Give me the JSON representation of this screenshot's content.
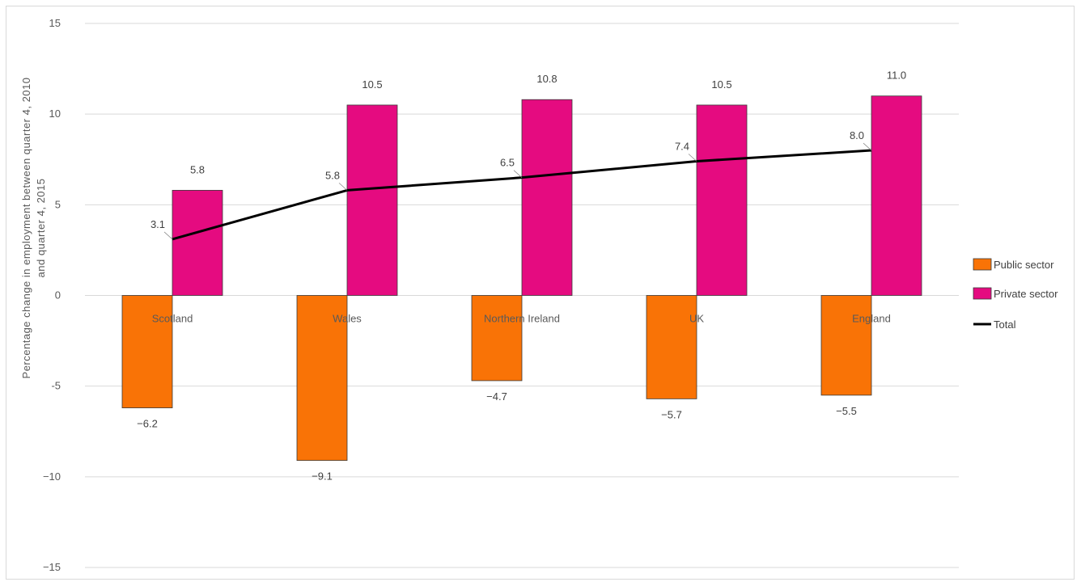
{
  "chart_data": {
    "type": "bar",
    "categories": [
      "Scotland",
      "Wales",
      "Northern Ireland",
      "UK",
      "England"
    ],
    "series": [
      {
        "name": "Public sector",
        "kind": "bar",
        "color": "#f97306",
        "values": [
          -6.2,
          -9.1,
          -4.7,
          -5.7,
          -5.5
        ]
      },
      {
        "name": "Private sector",
        "kind": "bar",
        "color": "#e50b80",
        "values": [
          5.8,
          10.5,
          10.8,
          10.5,
          11.0
        ]
      },
      {
        "name": "Total",
        "kind": "line",
        "color": "#000000",
        "values": [
          3.1,
          5.8,
          6.5,
          7.4,
          8.0
        ]
      }
    ],
    "value_labels": {
      "Public sector": [
        "−6.2",
        "−9.1",
        "−4.7",
        "−5.7",
        "−5.5"
      ],
      "Private sector": [
        "5.8",
        "10.5",
        "10.8",
        "10.5",
        "11.0"
      ],
      "Total": [
        "3.1",
        "5.8",
        "6.5",
        "7.4",
        "8.0"
      ]
    },
    "ylim": [
      -15,
      15
    ],
    "yticks": [
      15,
      10,
      5,
      0,
      -5,
      -10,
      -15
    ],
    "ytick_labels": [
      "15",
      "10",
      "5",
      "0",
      "-5",
      "−10",
      "−15"
    ],
    "ylabel_lines": [
      "Percentage change in employment between quarter 4, 2010",
      "and quarter 4, 2015"
    ],
    "xlabel": "",
    "grid": true,
    "legend": "right"
  }
}
